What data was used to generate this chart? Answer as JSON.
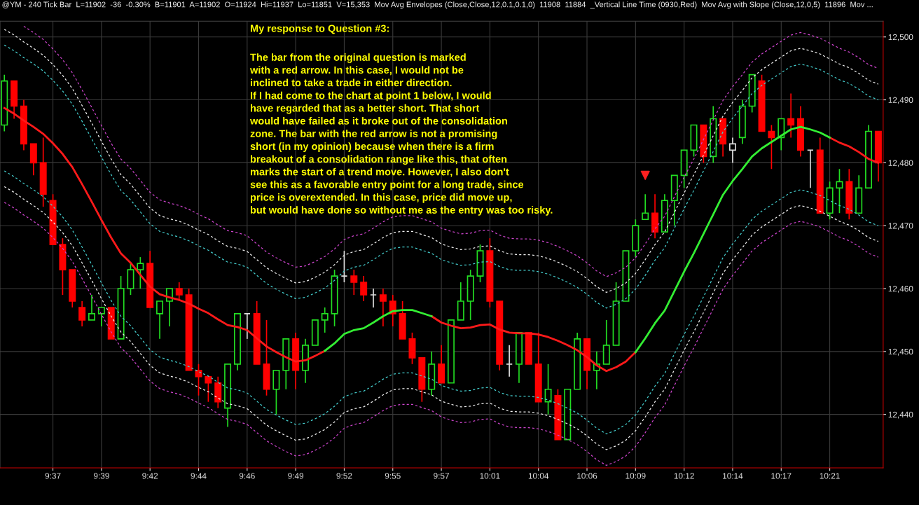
{
  "chart_data": {
    "type": "candlestick",
    "title": "@YM - 240 Tick Bar  L=11902  -36  -0.30%  B=11901  A=11902  O=11924  Hi=11937  Lo=11851  V=15,353  Mov Avg Envelopes (Close,Close,12,0.1,0.1,0)  11908  11884  _Vertical Line Time (0930,Red)  Mov Avg with Slope (Close,12,0,5)  11896  Mov ...",
    "annotations": [
      "My response to Question #3:",
      "The bar from the original question is marked\nwith a red arrow. In this case, I would not be\ninclined to take a trade in either direction.\nIf I had come to the chart at point 1 below, I would\nhave regarded that as a better short. That short\nwould have failed as it broke out of the consolidation\nzone. The bar with the red arrow is not a promising\nshort (in my opinion) because when there is a firm\nbreakout of a consolidation range like this, that often\nmarks the start of a trend move. However, I also don't\nsee this as a favorable entry point for a long trade, since\nprice is overextended. In this case, price did move up,\nbut would have done so without me as the entry was too risky."
    ],
    "categories": [
      null,
      null,
      null,
      null,
      null,
      "9:37",
      null,
      null,
      null,
      null,
      "9:39",
      null,
      null,
      null,
      null,
      "9:42",
      null,
      null,
      null,
      null,
      "9:44",
      null,
      null,
      null,
      null,
      "9:46",
      null,
      null,
      null,
      null,
      "9:49",
      null,
      null,
      null,
      null,
      "9:52",
      null,
      null,
      null,
      null,
      "9:55",
      null,
      null,
      null,
      null,
      "9:57",
      null,
      null,
      null,
      null,
      "10:01",
      null,
      null,
      null,
      null,
      "10:04",
      null,
      null,
      null,
      null,
      "10:06",
      null,
      null,
      null,
      null,
      "10:09",
      null,
      null,
      null,
      null,
      "10:12",
      null,
      null,
      null,
      null,
      "10:14",
      null,
      null,
      null,
      null,
      "10:17",
      null,
      null,
      null,
      null,
      "10:21",
      null,
      null,
      null,
      null,
      null
    ],
    "ohlc": [
      [
        12486,
        12494,
        12485,
        12493
      ],
      [
        12493,
        12493,
        12487,
        12489
      ],
      [
        12489,
        12490,
        12482,
        12483
      ],
      [
        12483,
        12483,
        12478,
        12480
      ],
      [
        12480,
        12484,
        12473,
        12475
      ],
      [
        12474,
        12475,
        12467,
        12467
      ],
      [
        12467,
        12468,
        12459,
        12463
      ],
      [
        12463,
        12463,
        12457,
        12458
      ],
      [
        12457,
        12458,
        12454,
        12455
      ],
      [
        12455,
        12459,
        12455,
        12456
      ],
      [
        12456,
        12457,
        12454,
        12457
      ],
      [
        12457,
        12457,
        12452,
        12452
      ],
      [
        12452,
        12462,
        12452,
        12460
      ],
      [
        12460,
        12464,
        12459,
        12463
      ],
      [
        12463,
        12465,
        12460,
        12464
      ],
      [
        12464,
        12466,
        12457,
        12457
      ],
      [
        12456,
        12458,
        12452,
        12458
      ],
      [
        12458,
        12460,
        12454,
        12460
      ],
      [
        12460,
        12461,
        12458,
        12459
      ],
      [
        12459,
        12460,
        12447,
        12447
      ],
      [
        12447,
        12448,
        12443,
        12446
      ],
      [
        12446,
        12446,
        12442,
        12445
      ],
      [
        12445,
        12446,
        12441,
        12442
      ],
      [
        12441,
        12448,
        12438,
        12448
      ],
      [
        12448,
        12456,
        12447,
        12456
      ],
      [
        12456,
        12456,
        12452,
        12456
      ],
      [
        12456,
        12458,
        12448,
        12448
      ],
      [
        12448,
        12455,
        12443,
        12444
      ],
      [
        12444,
        12447,
        12440,
        12447
      ],
      [
        12447,
        12452,
        12444,
        12452
      ],
      [
        12452,
        12453,
        12444,
        12447
      ],
      [
        12447,
        12452,
        12445,
        12451
      ],
      [
        12451,
        12455,
        12451,
        12455
      ],
      [
        12455,
        12457,
        12453,
        12456
      ],
      [
        12456,
        12463,
        12454,
        12462
      ],
      [
        12462,
        12466,
        12461,
        12462
      ],
      [
        12462,
        12463,
        12459,
        12461
      ],
      [
        12461,
        12462,
        12458,
        12459
      ],
      [
        12459,
        12460,
        12457,
        12459
      ],
      [
        12459,
        12460,
        12454,
        12458
      ],
      [
        12458,
        12459,
        12454,
        12456
      ],
      [
        12456,
        12458,
        12452,
        12452
      ],
      [
        12452,
        12453,
        12448,
        12449
      ],
      [
        12449,
        12449,
        12442,
        12444
      ],
      [
        12444,
        12450,
        12443,
        12448
      ],
      [
        12448,
        12451,
        12445,
        12445
      ],
      [
        12445,
        12455,
        12445,
        12455
      ],
      [
        12455,
        12461,
        12455,
        12458
      ],
      [
        12458,
        12463,
        12455,
        12462
      ],
      [
        12462,
        12467,
        12461,
        12466
      ],
      [
        12466,
        12468,
        12457,
        12458
      ],
      [
        12458,
        12458,
        12447,
        12448
      ],
      [
        12448,
        12451,
        12446,
        12448
      ],
      [
        12448,
        12453,
        12445,
        12453
      ],
      [
        12453,
        12453,
        12448,
        12448
      ],
      [
        12448,
        12453,
        12442,
        12442
      ],
      [
        12442,
        12448,
        12440,
        12444
      ],
      [
        12443,
        12444,
        12436,
        12436
      ],
      [
        12436,
        12444,
        12436,
        12444
      ],
      [
        12444,
        12453,
        12444,
        12452
      ],
      [
        12452,
        12452,
        12444,
        12447
      ],
      [
        12447,
        12450,
        12444,
        12448
      ],
      [
        12448,
        12455,
        12448,
        12451
      ],
      [
        12451,
        12461,
        12451,
        12458
      ],
      [
        12458,
        12466,
        12458,
        12466
      ],
      [
        12466,
        12471,
        12465,
        12470
      ],
      [
        12471,
        12475,
        12471,
        12472
      ],
      [
        12472,
        12475,
        12468,
        12469
      ],
      [
        12469,
        12475,
        12469,
        12474
      ],
      [
        12474,
        12478,
        12470,
        12478
      ],
      [
        12478,
        12482,
        12476,
        12482
      ],
      [
        12482,
        12486,
        12481,
        12486
      ],
      [
        12486,
        12486,
        12480,
        12481
      ],
      [
        12481,
        12489,
        12480,
        12487
      ],
      [
        12487,
        12487,
        12481,
        12483
      ],
      [
        12482,
        12484,
        12480,
        12483
      ],
      [
        12484,
        12490,
        12483,
        12489
      ],
      [
        12489,
        12494,
        12488,
        12494
      ],
      [
        12493,
        12494,
        12485,
        12485
      ],
      [
        12485,
        12486,
        12479,
        12484
      ],
      [
        12484,
        12487,
        12482,
        12487
      ],
      [
        12487,
        12491,
        12484,
        12486
      ],
      [
        12487,
        12489,
        12481,
        12482
      ],
      [
        12482,
        12482,
        12476,
        12482
      ],
      [
        12482,
        12484,
        12472,
        12472
      ],
      [
        12472,
        12477,
        12471,
        12476
      ],
      [
        12476,
        12479,
        12472,
        12477
      ],
      [
        12477,
        12479,
        12471,
        12472
      ],
      [
        12472,
        12478,
        12472,
        12476
      ],
      [
        12476,
        12486,
        12476,
        12485
      ],
      [
        12485,
        12485,
        12477,
        12480
      ]
    ],
    "colors": [
      "#22dd22",
      "#ff0000",
      "#ff0000",
      "#ff0000",
      "#ff0000",
      "#ff0000",
      "#ff0000",
      "#ff0000",
      "#ff0000",
      "#22dd22",
      "#22dd22",
      "#ff0000",
      "#22dd22",
      "#22dd22",
      "#22dd22",
      "#ff0000",
      "#22dd22",
      "#22dd22",
      "#ff0000",
      "#ff0000",
      "#ff0000",
      "#ff0000",
      "#ff0000",
      "#22dd22",
      "#22dd22",
      "#dddddd",
      "#ff0000",
      "#ff0000",
      "#22dd22",
      "#22dd22",
      "#ff0000",
      "#22dd22",
      "#22dd22",
      "#22dd22",
      "#22dd22",
      "#dddddd",
      "#ff0000",
      "#ff0000",
      "#dddddd",
      "#ff0000",
      "#ff0000",
      "#ff0000",
      "#ff0000",
      "#ff0000",
      "#22dd22",
      "#ff0000",
      "#22dd22",
      "#22dd22",
      "#22dd22",
      "#22dd22",
      "#ff0000",
      "#ff0000",
      "#dddddd",
      "#22dd22",
      "#ff0000",
      "#ff0000",
      "#22dd22",
      "#ff0000",
      "#22dd22",
      "#22dd22",
      "#ff0000",
      "#22dd22",
      "#22dd22",
      "#22dd22",
      "#22dd22",
      "#22dd22",
      "#22dd22",
      "#ff0000",
      "#22dd22",
      "#22dd22",
      "#22dd22",
      "#22dd22",
      "#ff0000",
      "#22dd22",
      "#ff0000",
      "#dddddd",
      "#22dd22",
      "#22dd22",
      "#ff0000",
      "#ff0000",
      "#22dd22",
      "#ff0000",
      "#ff0000",
      "#dddddd",
      "#ff0000",
      "#22dd22",
      "#22dd22",
      "#ff0000",
      "#22dd22",
      "#22dd22",
      "#ff0000"
    ],
    "series": [
      {
        "type": "line",
        "color": "#ff1a1a",
        "line_style": "solid",
        "values": [
          12488.7,
          12487.8,
          12486.7,
          12485.7,
          12484.6,
          12483.1,
          12481.4,
          12479.3,
          12476.6,
          12473.8,
          12470.9,
          12468.1,
          12465.6,
          12464.1,
          12462.2,
          12460.3,
          12459.1,
          12458.6,
          12458.2,
          12457.6,
          12456.8,
          12456.1,
          12455.1,
          12454.2,
          12453.9,
          12453.4,
          12452.1,
          12450.8,
          12449.9,
          12449.1,
          12448.4,
          12448.6,
          12449.3,
          12450.1,
          null,
          null,
          null,
          null,
          null,
          null,
          null,
          null,
          null,
          null,
          12455.6,
          12454.6,
          12454.1,
          12453.7,
          12453.8,
          12454.2,
          12454.3,
          12453.5,
          12453.0,
          12452.9,
          12452.9,
          12452.7,
          12452.3,
          12451.7,
          12451.0,
          12450.2,
          12449.1,
          12447.8,
          12446.9,
          12447.5,
          12448.4,
          12449.9,
          null,
          null,
          null,
          null,
          null,
          null,
          null,
          null,
          null,
          null,
          null,
          null,
          null,
          null,
          null,
          null,
          null,
          null,
          null,
          12484.0,
          12483.2,
          12482.6,
          12481.7,
          12480.6,
          12480.0
        ]
      },
      {
        "type": "line",
        "color": "#33ee33",
        "line_style": "solid",
        "values": [
          null,
          null,
          null,
          null,
          null,
          null,
          null,
          null,
          null,
          null,
          null,
          null,
          null,
          null,
          null,
          null,
          null,
          null,
          null,
          null,
          null,
          null,
          null,
          null,
          null,
          null,
          null,
          null,
          null,
          null,
          null,
          null,
          null,
          12450.1,
          12451.3,
          12452.8,
          12453.4,
          12453.7,
          12454.6,
          12455.6,
          12456.4,
          12456.6,
          12456.6,
          12456.1,
          12455.6,
          null,
          null,
          null,
          null,
          null,
          null,
          null,
          null,
          null,
          null,
          null,
          null,
          null,
          null,
          null,
          null,
          null,
          null,
          null,
          null,
          12449.9,
          12452.1,
          12454.5,
          12456.5,
          12459.6,
          12462.7,
          12465.6,
          12468.7,
          12471.8,
          12474.9,
          12477.1,
          12479.0,
          12481.0,
          12482.3,
          12483.3,
          12484.3,
          12485.3,
          12485.7,
          12485.3,
          12484.8,
          12484.0,
          null,
          null,
          null,
          null,
          null
        ]
      },
      {
        "type": "line",
        "color": "#44cccc",
        "line_style": "dashed",
        "values": [
          12498.7,
          12497.8,
          12496.7,
          12495.7,
          12494.6,
          12493.1,
          12491.4,
          12489.3,
          12486.6,
          12483.8,
          12480.9,
          12478.1,
          12475.6,
          12474.1,
          12472.2,
          12470.3,
          12469.1,
          12468.6,
          12468.2,
          12467.6,
          12466.8,
          12466.1,
          12465.1,
          12464.2,
          12463.9,
          12463.4,
          12462.1,
          12460.8,
          12459.9,
          12459.1,
          12458.4,
          12458.6,
          12459.3,
          12460.1,
          12461.3,
          12462.8,
          12463.4,
          12463.7,
          12464.6,
          12465.6,
          12466.4,
          12466.6,
          12466.6,
          12466.1,
          12465.6,
          12464.6,
          12464.1,
          12463.7,
          12463.8,
          12464.2,
          12464.3,
          12463.5,
          12463.0,
          12462.9,
          12462.9,
          12462.7,
          12462.3,
          12461.7,
          12461.0,
          12460.2,
          12459.1,
          12457.8,
          12456.9,
          12457.5,
          12458.4,
          12459.9,
          12462.1,
          12464.5,
          12466.5,
          12469.6,
          12472.7,
          12475.6,
          12478.7,
          12481.8,
          12484.9,
          12487.1,
          12489.0,
          12491.0,
          12492.3,
          12493.3,
          12494.3,
          12495.3,
          12495.7,
          12495.3,
          12494.8,
          12494.0,
          12493.2,
          12492.6,
          12491.7,
          12490.6,
          12490.0
        ]
      },
      {
        "type": "line",
        "color": "#44cccc",
        "line_style": "dashed",
        "values": [
          12478.7,
          12477.8,
          12476.7,
          12475.7,
          12474.6,
          12473.1,
          12471.4,
          12469.3,
          12466.6,
          12463.8,
          12460.9,
          12458.1,
          12455.6,
          12454.1,
          12452.2,
          12450.3,
          12449.1,
          12448.6,
          12448.2,
          12447.6,
          12446.8,
          12446.1,
          12445.1,
          12444.2,
          12443.9,
          12443.4,
          12442.1,
          12440.8,
          12439.9,
          12439.1,
          12438.4,
          12438.6,
          12439.3,
          12440.1,
          12441.3,
          12442.8,
          12443.4,
          12443.7,
          12444.6,
          12445.6,
          12446.4,
          12446.6,
          12446.6,
          12446.1,
          12445.6,
          12444.6,
          12444.1,
          12443.7,
          12443.8,
          12444.2,
          12444.3,
          12443.5,
          12443.0,
          12442.9,
          12442.9,
          12442.7,
          12442.3,
          12441.7,
          12441.0,
          12440.2,
          12439.1,
          12437.8,
          12436.9,
          12437.5,
          12438.4,
          12439.9,
          12442.1,
          12444.5,
          12446.5,
          12449.6,
          12452.7,
          12455.6,
          12458.7,
          12461.8,
          12464.9,
          12467.1,
          12469.0,
          12471.0,
          12472.3,
          12473.3,
          12474.3,
          12475.3,
          12475.7,
          12475.3,
          12474.8,
          12474.0,
          12473.2,
          12472.6,
          12471.7,
          12470.6,
          12470.0
        ]
      },
      {
        "type": "line",
        "color": "#eeeeee",
        "line_style": "dashed",
        "values": [
          12501.2,
          12500.3,
          12499.2,
          12498.2,
          12497.1,
          12495.6,
          12493.9,
          12491.8,
          12489.1,
          12486.3,
          12483.4,
          12480.6,
          12478.1,
          12476.6,
          12474.7,
          12472.8,
          12471.6,
          12471.1,
          12470.7,
          12470.1,
          12469.3,
          12468.6,
          12467.6,
          12466.7,
          12466.4,
          12465.9,
          12464.6,
          12463.3,
          12462.4,
          12461.6,
          12460.9,
          12461.1,
          12461.8,
          12462.6,
          12463.8,
          12465.3,
          12465.9,
          12466.2,
          12467.1,
          12468.1,
          12468.9,
          12469.1,
          12469.1,
          12468.6,
          12468.1,
          12467.1,
          12466.6,
          12466.2,
          12466.3,
          12466.7,
          12466.8,
          12466.0,
          12465.5,
          12465.4,
          12465.4,
          12465.2,
          12464.8,
          12464.2,
          12463.5,
          12462.7,
          12461.6,
          12460.3,
          12459.4,
          12460.0,
          12460.9,
          12462.4,
          12464.6,
          12467.0,
          12469.0,
          12472.1,
          12475.2,
          12478.1,
          12481.2,
          12484.3,
          12487.4,
          12489.6,
          12491.5,
          12493.5,
          12494.8,
          12495.8,
          12496.8,
          12497.8,
          12498.2,
          12497.8,
          12497.3,
          12496.5,
          12495.7,
          12495.1,
          12494.2,
          12493.1,
          12492.5
        ]
      },
      {
        "type": "line",
        "color": "#eeeeee",
        "line_style": "dashed",
        "values": [
          12476.2,
          12475.3,
          12474.2,
          12473.2,
          12472.1,
          12470.6,
          12468.9,
          12466.8,
          12464.1,
          12461.3,
          12458.4,
          12455.6,
          12453.1,
          12451.6,
          12449.7,
          12447.8,
          12446.6,
          12446.1,
          12445.7,
          12445.1,
          12444.3,
          12443.6,
          12442.6,
          12441.7,
          12441.4,
          12440.9,
          12439.6,
          12438.3,
          12437.4,
          12436.6,
          12435.9,
          12436.1,
          12436.8,
          12437.6,
          12438.8,
          12440.3,
          12440.9,
          12441.2,
          12442.1,
          12443.1,
          12443.9,
          12444.1,
          12444.1,
          12443.6,
          12443.1,
          12442.1,
          12441.6,
          12441.2,
          12441.3,
          12441.7,
          12441.8,
          12441.0,
          12440.5,
          12440.4,
          12440.4,
          12440.2,
          12439.8,
          12439.2,
          12438.5,
          12437.7,
          12436.6,
          12435.3,
          12434.4,
          12435.0,
          12435.9,
          12437.4,
          12439.6,
          12442.0,
          12444.0,
          12447.1,
          12450.2,
          12453.1,
          12456.2,
          12459.3,
          12462.4,
          12464.6,
          12466.5,
          12468.5,
          12469.8,
          12470.8,
          12471.8,
          12472.8,
          12473.2,
          12472.8,
          12472.3,
          12471.5,
          12470.7,
          12470.1,
          12469.2,
          12468.1,
          12467.5
        ]
      },
      {
        "type": "line",
        "color": "#cc44cc",
        "line_style": "dashed",
        "values": [
          null,
          null,
          12501.7,
          12500.7,
          12499.6,
          12498.1,
          12496.4,
          12494.3,
          12491.6,
          12488.8,
          12485.9,
          12483.1,
          12480.6,
          12479.1,
          12477.2,
          12475.3,
          12474.1,
          12473.6,
          12473.2,
          12472.6,
          12471.8,
          12471.1,
          12470.1,
          12469.2,
          12468.9,
          12468.4,
          12467.1,
          12465.8,
          12464.9,
          12464.1,
          12463.4,
          12463.6,
          12464.3,
          12465.1,
          12466.3,
          12467.8,
          12468.4,
          12468.7,
          12469.6,
          12470.6,
          12471.4,
          12471.6,
          12471.6,
          12471.1,
          12470.6,
          12469.6,
          12469.1,
          12468.7,
          12468.8,
          12469.2,
          12469.3,
          12468.5,
          12468.0,
          12467.9,
          12467.9,
          12467.7,
          12467.3,
          12466.7,
          12466.0,
          12465.2,
          12464.1,
          12462.8,
          12461.9,
          12462.5,
          12463.4,
          12464.9,
          12467.1,
          12469.5,
          12471.5,
          12474.6,
          12477.7,
          12480.6,
          12483.7,
          12486.8,
          12489.9,
          12492.1,
          12494.0,
          12496.0,
          12497.3,
          12498.3,
          12499.3,
          12500.3,
          12500.7,
          12500.3,
          12499.8,
          12499.0,
          12498.2,
          12497.6,
          12496.7,
          12495.6,
          12495.0
        ]
      },
      {
        "type": "line",
        "color": "#cc44cc",
        "line_style": "dashed",
        "values": [
          12473.7,
          12472.8,
          12471.7,
          12470.7,
          12469.6,
          12468.1,
          12466.4,
          12464.3,
          12461.6,
          12458.8,
          12455.9,
          12453.1,
          12450.6,
          12449.1,
          12447.2,
          12445.3,
          12444.1,
          12443.6,
          12443.2,
          12442.6,
          12441.8,
          12441.1,
          12440.1,
          12439.2,
          12438.9,
          12438.4,
          12437.1,
          12435.8,
          12434.9,
          12434.1,
          12433.4,
          12433.6,
          12434.3,
          12435.1,
          12436.3,
          12437.8,
          12438.4,
          12438.7,
          12439.6,
          12440.6,
          12441.4,
          12441.6,
          12441.6,
          12441.1,
          12440.6,
          12439.6,
          12439.1,
          12438.7,
          12438.8,
          12439.2,
          12439.3,
          12438.5,
          12438.0,
          12437.9,
          12437.9,
          12437.7,
          12437.3,
          12436.7,
          12436.0,
          12435.2,
          12434.1,
          12432.8,
          12431.9,
          12432.5,
          12433.4,
          12434.9,
          12437.1,
          12439.5,
          12441.5,
          12444.6,
          12447.7,
          12450.6,
          12453.7,
          12456.8,
          12459.9,
          12462.1,
          12464.0,
          12466.0,
          12467.3,
          12468.3,
          12469.3,
          12470.3,
          12470.7,
          12470.3,
          12469.8,
          12469.0,
          12468.2,
          12467.6,
          12466.7,
          12465.6,
          12465.0
        ]
      },
      {
        "type": "scatter",
        "color": "#ff2020",
        "marker": "triangle",
        "values": [
          null,
          null,
          null,
          null,
          null,
          null,
          null,
          null,
          null,
          null,
          null,
          null,
          null,
          null,
          null,
          null,
          null,
          null,
          null,
          null,
          null,
          null,
          null,
          null,
          null,
          null,
          null,
          null,
          null,
          null,
          null,
          null,
          null,
          null,
          null,
          null,
          null,
          null,
          null,
          null,
          null,
          null,
          null,
          null,
          null,
          null,
          null,
          null,
          null,
          null,
          null,
          null,
          null,
          null,
          null,
          null,
          null,
          null,
          null,
          null,
          null,
          null,
          null,
          null,
          null,
          null,
          12478,
          null,
          null,
          null,
          null,
          null,
          null,
          null,
          null,
          null,
          null,
          null,
          null,
          null,
          null,
          null,
          null,
          null,
          null,
          null,
          null,
          null,
          null,
          null,
          null
        ]
      }
    ],
    "ylim": [
      12431.5,
      12502.5
    ],
    "yticks": [
      {
        "value": 12440,
        "label": "12,440"
      },
      {
        "value": 12450,
        "label": "12,450"
      },
      {
        "value": 12460,
        "label": "12,460"
      },
      {
        "value": 12470,
        "label": "12,470"
      },
      {
        "value": 12480,
        "label": "12,480"
      },
      {
        "value": 12490,
        "label": "12,490"
      },
      {
        "value": 12500,
        "label": "12,500"
      }
    ],
    "grid": true
  }
}
